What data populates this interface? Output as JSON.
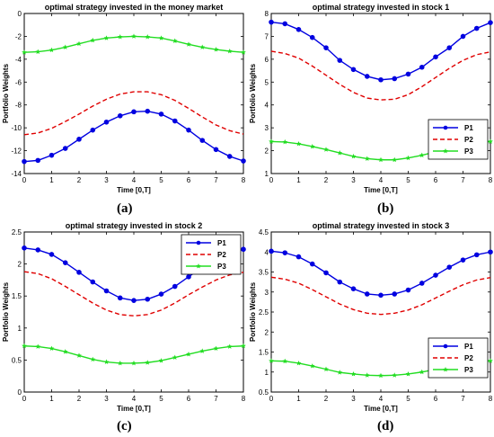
{
  "colors": {
    "P1": "#0000e0",
    "P2": "#e00000",
    "P3": "#22dd22"
  },
  "chart_data": [
    {
      "panel_label": "(a)",
      "type": "line",
      "title": "optimal strategy invested in the money market",
      "xlabel": "Time [0,T]",
      "ylabel": "Portfolio Weights",
      "xlim": [
        0,
        8
      ],
      "ylim": [
        -14,
        0
      ],
      "xticks": [
        "0",
        "1",
        "2",
        "3",
        "4",
        "5",
        "6",
        "7",
        "8"
      ],
      "yticks": [
        "0",
        "-2",
        "-4",
        "-6",
        "-8",
        "-10",
        "-12",
        "-14"
      ],
      "legend": "none",
      "x": [
        0,
        0.5,
        1,
        1.5,
        2,
        2.5,
        3,
        3.5,
        4,
        4.5,
        5,
        5.5,
        6,
        6.5,
        7,
        7.5,
        8
      ],
      "series": [
        {
          "name": "P1",
          "style": "solid-dot",
          "values": [
            -12.95,
            -12.85,
            -12.4,
            -11.8,
            -11.0,
            -10.2,
            -9.5,
            -8.95,
            -8.6,
            -8.55,
            -8.8,
            -9.4,
            -10.2,
            -11.1,
            -11.9,
            -12.5,
            -12.9
          ]
        },
        {
          "name": "P2",
          "style": "dashed",
          "values": [
            -10.6,
            -10.45,
            -10.05,
            -9.45,
            -8.8,
            -8.1,
            -7.5,
            -7.05,
            -6.85,
            -6.85,
            -7.1,
            -7.6,
            -8.3,
            -9.05,
            -9.75,
            -10.25,
            -10.55
          ]
        },
        {
          "name": "P3",
          "style": "solid-star",
          "values": [
            -3.4,
            -3.35,
            -3.2,
            -2.95,
            -2.65,
            -2.35,
            -2.15,
            -2.05,
            -2.0,
            -2.05,
            -2.15,
            -2.4,
            -2.7,
            -2.95,
            -3.15,
            -3.3,
            -3.4
          ]
        }
      ]
    },
    {
      "panel_label": "(b)",
      "type": "line",
      "title": "optimal strategy invested in stock 1",
      "xlabel": "Time [0,T]",
      "ylabel": "Portfolio Weights",
      "xlim": [
        0,
        8
      ],
      "ylim": [
        1,
        8
      ],
      "xticks": [
        "0",
        "1",
        "2",
        "3",
        "4",
        "5",
        "6",
        "7",
        "8"
      ],
      "yticks": [
        "8",
        "7",
        "6",
        "5",
        "4",
        "3",
        "2",
        "1"
      ],
      "legend": "right",
      "x": [
        0,
        0.5,
        1,
        1.5,
        2,
        2.5,
        3,
        3.5,
        4,
        4.5,
        5,
        5.5,
        6,
        6.5,
        7,
        7.5,
        8
      ],
      "series": [
        {
          "name": "P1",
          "style": "solid-dot",
          "values": [
            7.62,
            7.55,
            7.3,
            6.95,
            6.5,
            5.95,
            5.55,
            5.25,
            5.1,
            5.15,
            5.35,
            5.65,
            6.1,
            6.5,
            7.0,
            7.35,
            7.6
          ]
        },
        {
          "name": "P2",
          "style": "dashed",
          "values": [
            6.35,
            6.25,
            6.05,
            5.7,
            5.3,
            4.9,
            4.55,
            4.3,
            4.22,
            4.25,
            4.45,
            4.8,
            5.2,
            5.6,
            5.95,
            6.2,
            6.32
          ]
        },
        {
          "name": "P3",
          "style": "solid-star",
          "values": [
            2.4,
            2.38,
            2.3,
            2.18,
            2.05,
            1.9,
            1.75,
            1.65,
            1.6,
            1.6,
            1.68,
            1.8,
            1.95,
            2.1,
            2.25,
            2.35,
            2.4
          ]
        }
      ]
    },
    {
      "panel_label": "(c)",
      "type": "line",
      "title": "optimal strategy invested in stock 2",
      "xlabel": "Time [0,T]",
      "ylabel": "Portfolio Weights",
      "xlim": [
        0,
        8
      ],
      "ylim": [
        0,
        2.5
      ],
      "xticks": [
        "0",
        "1",
        "2",
        "3",
        "4",
        "5",
        "6",
        "7",
        "8"
      ],
      "yticks": [
        "2.5",
        "2",
        "1.5",
        "1",
        "0.5",
        "0"
      ],
      "legend": "top-right",
      "x": [
        0,
        0.5,
        1,
        1.5,
        2,
        2.5,
        3,
        3.5,
        4,
        4.5,
        5,
        5.5,
        6,
        6.5,
        7,
        7.5,
        8
      ],
      "series": [
        {
          "name": "P1",
          "style": "solid-dot",
          "values": [
            2.25,
            2.22,
            2.15,
            2.02,
            1.87,
            1.72,
            1.58,
            1.47,
            1.43,
            1.45,
            1.53,
            1.65,
            1.8,
            1.95,
            2.08,
            2.18,
            2.23
          ]
        },
        {
          "name": "P2",
          "style": "dashed",
          "values": [
            1.88,
            1.85,
            1.77,
            1.65,
            1.52,
            1.39,
            1.28,
            1.21,
            1.19,
            1.21,
            1.28,
            1.39,
            1.52,
            1.64,
            1.75,
            1.83,
            1.87
          ]
        },
        {
          "name": "P3",
          "style": "solid-star",
          "values": [
            0.72,
            0.71,
            0.68,
            0.63,
            0.57,
            0.51,
            0.47,
            0.45,
            0.45,
            0.46,
            0.49,
            0.54,
            0.59,
            0.64,
            0.68,
            0.71,
            0.72
          ]
        }
      ]
    },
    {
      "panel_label": "(d)",
      "type": "line",
      "title": "optimal strategy invested in stock 3",
      "xlabel": "Time [0,T]",
      "ylabel": "Portfolio Weights",
      "xlim": [
        0,
        8
      ],
      "ylim": [
        0.5,
        4.5
      ],
      "xticks": [
        "0",
        "1",
        "2",
        "3",
        "4",
        "5",
        "6",
        "7",
        "8"
      ],
      "yticks": [
        "4.5",
        "4",
        "3.5",
        "3",
        "2.5",
        "2",
        "1.5",
        "1",
        "0.5"
      ],
      "legend": "right",
      "x": [
        0,
        0.5,
        1,
        1.5,
        2,
        2.5,
        3,
        3.5,
        4,
        4.5,
        5,
        5.5,
        6,
        6.5,
        7,
        7.5,
        8
      ],
      "series": [
        {
          "name": "P1",
          "style": "solid-dot",
          "values": [
            4.02,
            3.98,
            3.88,
            3.7,
            3.48,
            3.25,
            3.08,
            2.95,
            2.92,
            2.95,
            3.05,
            3.22,
            3.42,
            3.62,
            3.8,
            3.93,
            4.0
          ]
        },
        {
          "name": "P2",
          "style": "dashed",
          "values": [
            3.37,
            3.32,
            3.22,
            3.06,
            2.88,
            2.7,
            2.56,
            2.47,
            2.44,
            2.47,
            2.55,
            2.68,
            2.85,
            3.02,
            3.18,
            3.3,
            3.36
          ]
        },
        {
          "name": "P3",
          "style": "solid-star",
          "values": [
            1.28,
            1.27,
            1.22,
            1.15,
            1.07,
            0.99,
            0.95,
            0.92,
            0.91,
            0.92,
            0.95,
            1.0,
            1.07,
            1.14,
            1.2,
            1.25,
            1.28
          ]
        }
      ]
    }
  ]
}
